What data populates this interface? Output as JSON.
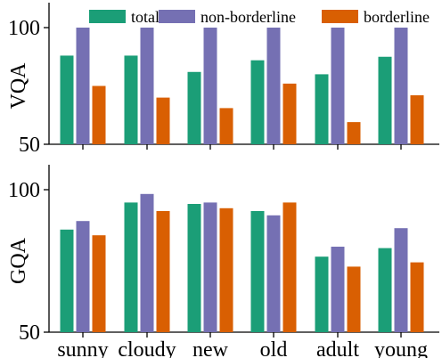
{
  "chart_data": [
    {
      "type": "bar",
      "title": "",
      "xlabel": "",
      "ylabel": "VQA",
      "ylim": [
        50,
        100
      ],
      "yticks": [
        "50",
        "100"
      ],
      "categories": [
        "sunny",
        "cloudy",
        "new",
        "old",
        "adult",
        "young"
      ],
      "show_category_labels": false,
      "grid": false,
      "legend": {
        "placement": "top-center",
        "entries": [
          "total",
          "non-borderline",
          "borderline"
        ]
      },
      "series": [
        {
          "name": "total",
          "color": "#1b9e77",
          "values": [
            88,
            88,
            81,
            86,
            80,
            87.5
          ]
        },
        {
          "name": "non-borderline",
          "color": "#7570b3",
          "values": [
            100,
            100,
            100,
            100,
            100,
            100
          ]
        },
        {
          "name": "borderline",
          "color": "#d95f02",
          "values": [
            75,
            70,
            65.5,
            76,
            59.5,
            71
          ]
        }
      ]
    },
    {
      "type": "bar",
      "title": "",
      "xlabel": "",
      "ylabel": "GQA",
      "ylim": [
        50,
        100
      ],
      "yticks": [
        "50",
        "100"
      ],
      "categories": [
        "sunny",
        "cloudy",
        "new",
        "old",
        "adult",
        "young"
      ],
      "show_category_labels": true,
      "grid": false,
      "series": [
        {
          "name": "total",
          "color": "#1b9e77",
          "values": [
            86,
            95.5,
            95,
            92.5,
            76.5,
            79.5
          ]
        },
        {
          "name": "non-borderline",
          "color": "#7570b3",
          "values": [
            89,
            98.5,
            95.5,
            91,
            80,
            86.5
          ]
        },
        {
          "name": "borderline",
          "color": "#d95f02",
          "values": [
            84,
            92.5,
            93.5,
            95.5,
            73,
            74.5
          ]
        }
      ]
    }
  ]
}
